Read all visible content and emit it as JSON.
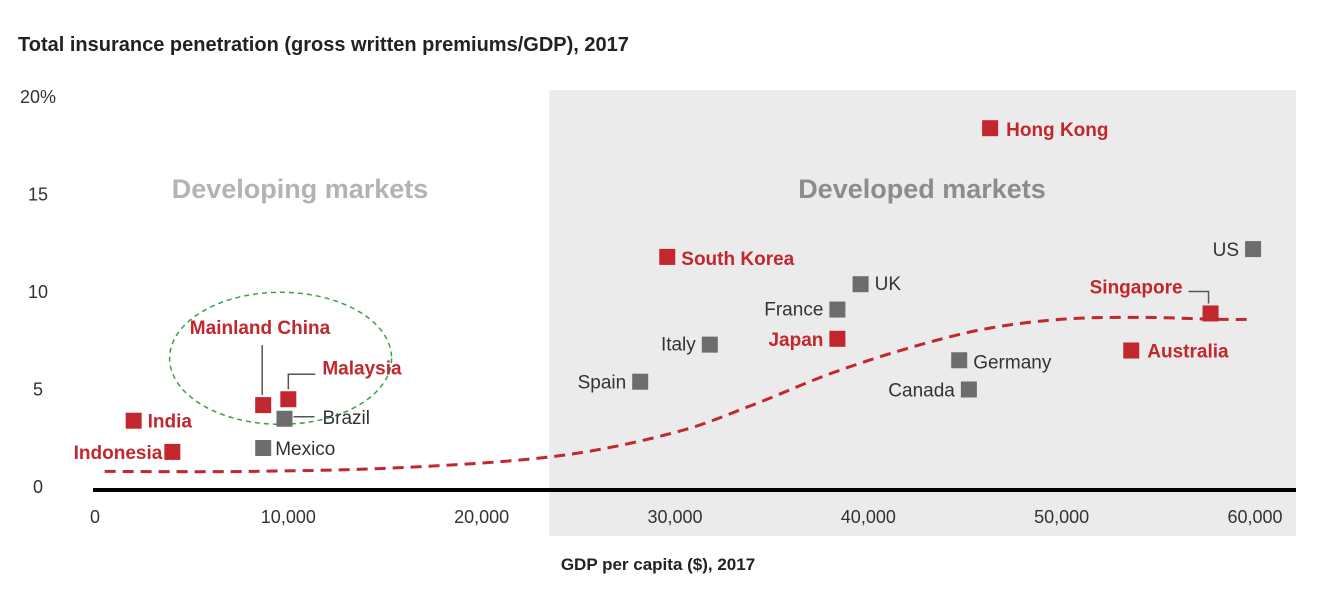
{
  "chart_data": {
    "type": "scatter",
    "title": "Total insurance penetration (gross written premiums/GDP), 2017",
    "xlabel": "GDP per capita ($), 2017",
    "ylabel": "",
    "xlim": [
      0,
      60000
    ],
    "ylim": [
      0,
      20
    ],
    "x_ticks": [
      0,
      10000,
      20000,
      30000,
      40000,
      50000,
      60000
    ],
    "x_tick_labels": [
      "0",
      "10,000",
      "20,000",
      "30,000",
      "40,000",
      "50,000",
      "60,000"
    ],
    "y_ticks": [
      0,
      5,
      10,
      15,
      20
    ],
    "y_tick_labels": [
      "0",
      "5",
      "10",
      "15",
      "20%"
    ],
    "regions": [
      {
        "label": "Developing markets",
        "x_range": [
          0,
          23500
        ]
      },
      {
        "label": "Developed markets",
        "x_range": [
          23500,
          60000
        ],
        "shaded": true
      }
    ],
    "colors": {
      "highlight": "#c1272d",
      "other": "#6d6d6d",
      "shade": "#ebebeb",
      "trend": "#c1272d",
      "circle": "#3aa04a"
    },
    "points": [
      {
        "name": "Indonesia",
        "x": 4000,
        "y": 1.8,
        "highlight": true
      },
      {
        "name": "India",
        "x": 2000,
        "y": 3.4,
        "highlight": true
      },
      {
        "name": "Mexico",
        "x": 8700,
        "y": 2.0,
        "highlight": false
      },
      {
        "name": "Brazil",
        "x": 9800,
        "y": 3.5,
        "highlight": false
      },
      {
        "name": "Mainland China",
        "x": 8700,
        "y": 4.2,
        "highlight": true
      },
      {
        "name": "Malaysia",
        "x": 10000,
        "y": 4.5,
        "highlight": true
      },
      {
        "name": "Spain",
        "x": 28200,
        "y": 5.4,
        "highlight": false
      },
      {
        "name": "Italy",
        "x": 31800,
        "y": 7.3,
        "highlight": false
      },
      {
        "name": "South Korea",
        "x": 29600,
        "y": 11.8,
        "highlight": true
      },
      {
        "name": "France",
        "x": 38400,
        "y": 9.1,
        "highlight": false
      },
      {
        "name": "UK",
        "x": 39600,
        "y": 10.4,
        "highlight": false
      },
      {
        "name": "Japan",
        "x": 38400,
        "y": 7.6,
        "highlight": true
      },
      {
        "name": "Hong Kong",
        "x": 46300,
        "y": 18.4,
        "highlight": true
      },
      {
        "name": "Germany",
        "x": 44700,
        "y": 6.5,
        "highlight": false
      },
      {
        "name": "Canada",
        "x": 45200,
        "y": 5.0,
        "highlight": false
      },
      {
        "name": "Singapore",
        "x": 57700,
        "y": 8.9,
        "highlight": true
      },
      {
        "name": "Australia",
        "x": 53600,
        "y": 7.0,
        "highlight": true
      },
      {
        "name": "US",
        "x": 59900,
        "y": 12.2,
        "highlight": false
      }
    ],
    "trend_line": [
      {
        "x": 500,
        "y": 0.8
      },
      {
        "x": 8000,
        "y": 0.8
      },
      {
        "x": 16000,
        "y": 1.0
      },
      {
        "x": 24000,
        "y": 1.6
      },
      {
        "x": 30000,
        "y": 2.8
      },
      {
        "x": 34000,
        "y": 4.2
      },
      {
        "x": 38000,
        "y": 5.8
      },
      {
        "x": 42000,
        "y": 7.1
      },
      {
        "x": 46000,
        "y": 8.1
      },
      {
        "x": 50000,
        "y": 8.6
      },
      {
        "x": 54000,
        "y": 8.7
      },
      {
        "x": 58000,
        "y": 8.6
      },
      {
        "x": 59800,
        "y": 8.6
      }
    ],
    "annotation_circle": {
      "label": "",
      "x": 9600,
      "y": 6.6
    }
  }
}
